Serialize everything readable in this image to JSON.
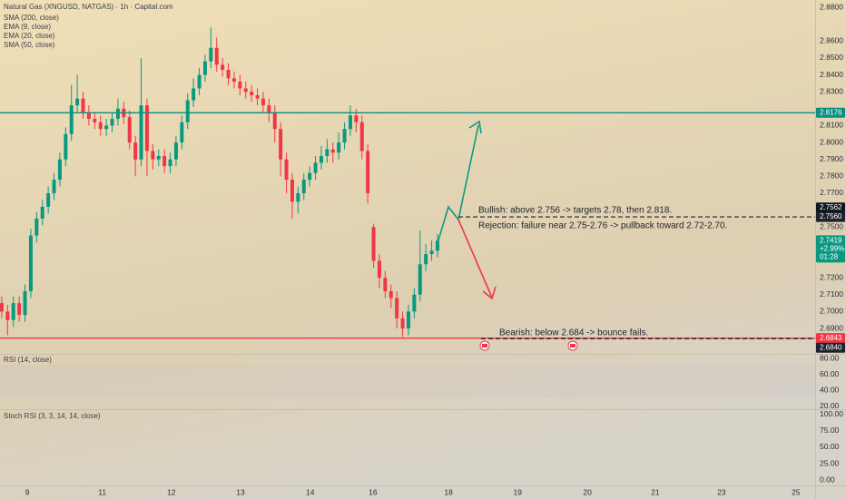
{
  "chart_data": {
    "type": "candlestick",
    "title": "Natural Gas (XNGUSD, NATGAS) · 1h · Capital.com",
    "legend": [
      "SMA (200, close)",
      "EMA (9, close)",
      "EMA (20, close)",
      "SMA (50, close)"
    ],
    "up_color": "#089981",
    "down_color": "#f23645",
    "x": [
      0,
      1,
      2,
      3,
      4,
      5,
      6,
      7,
      8,
      9,
      10,
      11,
      12,
      13,
      14,
      15,
      16,
      17,
      18,
      19,
      20,
      21,
      22,
      23,
      24,
      25,
      26,
      27,
      28,
      29,
      30,
      31,
      32,
      33,
      34,
      35,
      36,
      37,
      38,
      39,
      40,
      41,
      42,
      43,
      44,
      45,
      46,
      47,
      48,
      49,
      50,
      51,
      52,
      53,
      54,
      55,
      56,
      57,
      58,
      59,
      60,
      61,
      62,
      63,
      64,
      65,
      66,
      67,
      68,
      69,
      70,
      71,
      72,
      73,
      74,
      75
    ],
    "open": [
      2.705,
      2.7,
      2.695,
      2.705,
      2.698,
      2.712,
      2.745,
      2.755,
      2.762,
      2.77,
      2.778,
      2.79,
      2.805,
      2.822,
      2.826,
      2.818,
      2.814,
      2.812,
      2.808,
      2.81,
      2.814,
      2.82,
      2.815,
      2.8,
      2.79,
      2.822,
      2.795,
      2.79,
      2.792,
      2.786,
      2.79,
      2.8,
      2.812,
      2.825,
      2.832,
      2.84,
      2.848,
      2.856,
      2.846,
      2.843,
      2.838,
      2.836,
      2.832,
      2.83,
      2.828,
      2.826,
      2.822,
      2.818,
      2.808,
      2.79,
      2.778,
      2.765,
      2.77,
      2.778,
      2.782,
      2.788,
      2.792,
      2.796,
      2.794,
      2.8,
      2.808,
      2.816,
      2.812,
      2.795,
      2.75,
      2.73,
      2.72,
      2.712,
      2.708,
      2.696,
      2.69,
      2.7,
      2.71,
      2.728,
      2.734,
      2.736
    ],
    "high": [
      2.709,
      2.704,
      2.709,
      2.709,
      2.716,
      2.749,
      2.759,
      2.766,
      2.774,
      2.782,
      2.794,
      2.809,
      2.834,
      2.84,
      2.83,
      2.822,
      2.818,
      2.816,
      2.814,
      2.818,
      2.826,
      2.824,
      2.819,
      2.804,
      2.85,
      2.826,
      2.799,
      2.796,
      2.796,
      2.794,
      2.804,
      2.816,
      2.829,
      2.838,
      2.844,
      2.852,
      2.868,
      2.862,
      2.85,
      2.847,
      2.842,
      2.84,
      2.836,
      2.834,
      2.832,
      2.83,
      2.826,
      2.822,
      2.812,
      2.794,
      2.782,
      2.774,
      2.782,
      2.786,
      2.792,
      2.798,
      2.802,
      2.8,
      2.806,
      2.812,
      2.822,
      2.82,
      2.816,
      2.799,
      2.752,
      2.734,
      2.724,
      2.716,
      2.712,
      2.7,
      2.704,
      2.714,
      2.748,
      2.74,
      2.742,
      2.746
    ],
    "low": [
      2.696,
      2.686,
      2.691,
      2.694,
      2.694,
      2.708,
      2.741,
      2.751,
      2.758,
      2.766,
      2.774,
      2.786,
      2.801,
      2.818,
      2.814,
      2.81,
      2.808,
      2.804,
      2.804,
      2.806,
      2.81,
      2.811,
      2.796,
      2.78,
      2.786,
      2.78,
      2.784,
      2.786,
      2.782,
      2.782,
      2.786,
      2.796,
      2.808,
      2.821,
      2.828,
      2.836,
      2.844,
      2.842,
      2.839,
      2.834,
      2.832,
      2.828,
      2.826,
      2.824,
      2.822,
      2.818,
      2.812,
      2.8,
      2.78,
      2.77,
      2.755,
      2.758,
      2.766,
      2.774,
      2.778,
      2.784,
      2.788,
      2.788,
      2.79,
      2.796,
      2.804,
      2.806,
      2.79,
      2.764,
      2.726,
      2.714,
      2.708,
      2.702,
      2.69,
      2.685,
      2.686,
      2.696,
      2.706,
      2.724,
      2.73,
      2.732
    ],
    "close": [
      2.7,
      2.695,
      2.705,
      2.698,
      2.712,
      2.745,
      2.755,
      2.762,
      2.77,
      2.778,
      2.79,
      2.805,
      2.822,
      2.826,
      2.818,
      2.814,
      2.812,
      2.808,
      2.81,
      2.814,
      2.82,
      2.815,
      2.8,
      2.79,
      2.822,
      2.795,
      2.79,
      2.792,
      2.786,
      2.79,
      2.8,
      2.812,
      2.825,
      2.832,
      2.84,
      2.848,
      2.856,
      2.846,
      2.843,
      2.838,
      2.836,
      2.832,
      2.83,
      2.828,
      2.826,
      2.822,
      2.818,
      2.808,
      2.79,
      2.778,
      2.765,
      2.77,
      2.778,
      2.782,
      2.788,
      2.792,
      2.796,
      2.794,
      2.8,
      2.808,
      2.816,
      2.812,
      2.795,
      2.77,
      2.73,
      2.72,
      2.712,
      2.708,
      2.696,
      2.69,
      2.7,
      2.71,
      2.728,
      2.734,
      2.736,
      2.7419
    ],
    "xlim": [
      -0.3,
      140
    ],
    "xticks": [
      {
        "value": 4.4,
        "label": "9"
      },
      {
        "value": 17.3,
        "label": "11"
      },
      {
        "value": 29.2,
        "label": "12"
      },
      {
        "value": 41.1,
        "label": "13"
      },
      {
        "value": 53.1,
        "label": "14"
      },
      {
        "value": 63.9,
        "label": "16"
      },
      {
        "value": 76.9,
        "label": "18"
      },
      {
        "value": 88.8,
        "label": "19"
      },
      {
        "value": 100.8,
        "label": "20"
      },
      {
        "value": 112.5,
        "label": "21"
      },
      {
        "value": 123.9,
        "label": "23"
      },
      {
        "value": 136.7,
        "label": "25"
      }
    ],
    "ylim": [
      2.675,
      2.8843
    ],
    "yticks": [
      {
        "value": 2.88,
        "label": "2.8800"
      },
      {
        "value": 2.86,
        "label": "2.8600"
      },
      {
        "value": 2.85,
        "label": "2.8500"
      },
      {
        "value": 2.84,
        "label": "2.8400"
      },
      {
        "value": 2.83,
        "label": "2.8300"
      },
      {
        "value": 2.81,
        "label": "2.8100"
      },
      {
        "value": 2.8,
        "label": "2.8000"
      },
      {
        "value": 2.79,
        "label": "2.7900"
      },
      {
        "value": 2.78,
        "label": "2.7800"
      },
      {
        "value": 2.77,
        "label": "2.7700"
      },
      {
        "value": 2.75,
        "label": "2.7500"
      },
      {
        "value": 2.72,
        "label": "2.7200"
      },
      {
        "value": 2.71,
        "label": "2.7100"
      },
      {
        "value": 2.7,
        "label": "2.7000"
      },
      {
        "value": 2.69,
        "label": "2.6900"
      }
    ],
    "levels": [
      {
        "value": 2.8176,
        "color": "#0a8f80",
        "dash": false
      },
      {
        "value": 2.756,
        "label": "2.7560",
        "color": "#1e222d",
        "dash": true
      },
      {
        "value": 2.6843,
        "color": "#f23645",
        "dash": false
      },
      {
        "value": 2.684,
        "label": "2.6840",
        "color": "#1e222d",
        "dash": true
      }
    ],
    "markers": [
      {
        "value": 2.7562,
        "color": "#131722"
      }
    ],
    "last_price": {
      "value": 2.7419,
      "change": "+2.99%",
      "countdown": "01:28"
    },
    "annotations": [
      "Bullish: above 2.756 -> targets 2.78, then 2.818.",
      "Rejection: failure near 2.75-2.76 -> pullback toward 2.72-2.70.",
      "Bearish: below 2.684 -> bounce fails."
    ],
    "rsi": {
      "title": "RSI (14, close)",
      "ylim": [
        16.6,
        85.7
      ],
      "yticks": [
        {
          "value": 80,
          "label": "80.00"
        },
        {
          "value": 60,
          "label": "60.00"
        },
        {
          "value": 40,
          "label": "40.00"
        },
        {
          "value": 20,
          "label": "20.00"
        }
      ]
    },
    "stoch": {
      "title": "Stoch RSI (3, 3, 14, 14, close)",
      "ylim": [
        -8.3,
        106.9
      ],
      "yticks": [
        {
          "value": 100,
          "label": "100.00"
        },
        {
          "value": 75,
          "label": "75.00"
        },
        {
          "value": 50,
          "label": "50.00"
        },
        {
          "value": 25,
          "label": "25.00"
        },
        {
          "value": 0,
          "label": "0.00"
        }
      ]
    }
  }
}
